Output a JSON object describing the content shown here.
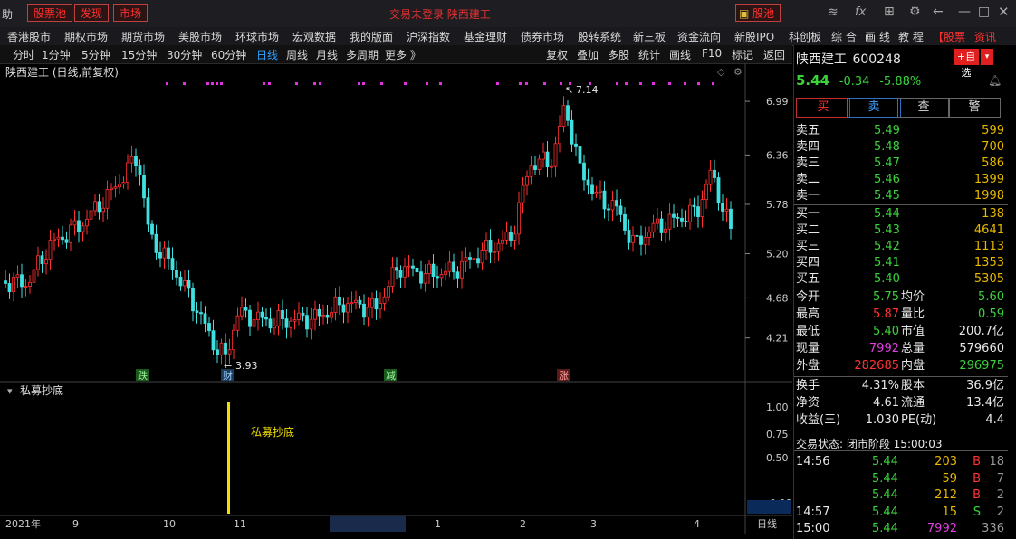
{
  "titlebar": {
    "left_label": "助",
    "tabs": [
      "股票池",
      "发现",
      "市场"
    ],
    "center_text": "交易未登录  陕西建工",
    "right_tab": "股池"
  },
  "menu": [
    "香港股市",
    "期权市场",
    "期货市场",
    "美股市场",
    "环球市场",
    "宏观数据",
    "我的版面",
    "沪深指数",
    "基金理财",
    "债券市场",
    "股转系统",
    "新三板",
    "资金流向",
    "新股IPO",
    "科创板",
    "综 合",
    "画 线",
    "教 程",
    "【股票"
  ],
  "menu_right": "资讯",
  "periods": [
    "分时",
    "1分钟",
    "5分钟",
    "15分钟",
    "30分钟",
    "60分钟",
    "日线",
    "周线",
    "月线",
    "多周期",
    "更多 》"
  ],
  "tools": [
    "复权",
    "叠加",
    "多股",
    "统计",
    "画线",
    "F10",
    "标记",
    "返回"
  ],
  "chart": {
    "label": "陕西建工 (日线,前复权)",
    "y_ticks": [
      "6.99",
      "6.36",
      "5.78",
      "5.20",
      "4.68",
      "4.21"
    ],
    "high_label": "7.14",
    "low_label": "3.93",
    "markers": [
      "跌",
      "财",
      "减",
      "涨"
    ],
    "indicator_label": "私募抄底",
    "indicator_text": "私募抄底",
    "ind_ticks": [
      "1.00",
      "0.75",
      "0.50",
      "-0.00"
    ],
    "x_labels": [
      "2021年",
      "9",
      "10",
      "11",
      "2021/11/30/二",
      "1",
      "2",
      "3",
      "4"
    ],
    "x_right": "日线"
  },
  "chart_data": {
    "type": "candlestick",
    "title": "陕西建工 (日线,前复权)",
    "ylim": [
      3.93,
      7.14
    ],
    "y_ticks": [
      6.99,
      6.36,
      5.78,
      5.2,
      4.68,
      4.21
    ],
    "x_labels": [
      "2021年",
      "9",
      "10",
      "11",
      "2021/11/30/二",
      "1",
      "2",
      "3",
      "4"
    ],
    "annotations": [
      {
        "label": "7.14",
        "type": "high"
      },
      {
        "label": "3.93",
        "type": "low"
      }
    ],
    "indicator": {
      "name": "私募抄底",
      "ylim": [
        0,
        1
      ],
      "signals": [
        1
      ]
    }
  },
  "quote": {
    "name": "陕西建工",
    "code": "600248",
    "add_btn": "+自选",
    "price": "5.44",
    "change": "-0.34",
    "change_pct": "-5.88%",
    "actions": [
      "买",
      "卖",
      "查",
      "警"
    ],
    "asks": [
      {
        "label": "卖五",
        "price": "5.49",
        "vol": "599"
      },
      {
        "label": "卖四",
        "price": "5.48",
        "vol": "700"
      },
      {
        "label": "卖三",
        "price": "5.47",
        "vol": "586"
      },
      {
        "label": "卖二",
        "price": "5.46",
        "vol": "1399"
      },
      {
        "label": "卖一",
        "price": "5.45",
        "vol": "1998"
      }
    ],
    "bids": [
      {
        "label": "买一",
        "price": "5.44",
        "vol": "138"
      },
      {
        "label": "买二",
        "price": "5.43",
        "vol": "4641"
      },
      {
        "label": "买三",
        "price": "5.42",
        "vol": "1113"
      },
      {
        "label": "买四",
        "price": "5.41",
        "vol": "1353"
      },
      {
        "label": "买五",
        "price": "5.40",
        "vol": "5305"
      }
    ],
    "stats1": [
      [
        "今开",
        "5.75",
        "均价",
        "5.60"
      ],
      [
        "最高",
        "5.87",
        "量比",
        "0.59"
      ],
      [
        "最低",
        "5.40",
        "市值",
        "200.7亿"
      ],
      [
        "现量",
        "7992",
        "总量",
        "579660"
      ],
      [
        "外盘",
        "282685",
        "内盘",
        "296975"
      ]
    ],
    "stats2": [
      [
        "换手",
        "4.31%",
        "股本",
        "36.9亿"
      ],
      [
        "净资",
        "4.61",
        "流通",
        "13.4亿"
      ],
      [
        "收益(三)",
        "1.030",
        "PE(动)",
        "4.4"
      ]
    ],
    "trade_status": "交易状态: 闭市阶段 15:00:03",
    "ticks": [
      {
        "time": "14:56",
        "price": "5.44",
        "vol": "203",
        "side": "B",
        "n": "18"
      },
      {
        "time": "",
        "price": "5.44",
        "vol": "59",
        "side": "B",
        "n": "7"
      },
      {
        "time": "",
        "price": "5.44",
        "vol": "212",
        "side": "B",
        "n": "2"
      },
      {
        "time": "14:57",
        "price": "5.44",
        "vol": "15",
        "side": "S",
        "n": "2"
      },
      {
        "time": "15:00",
        "price": "5.44",
        "vol": "7992",
        "side": "",
        "n": "336"
      }
    ]
  }
}
